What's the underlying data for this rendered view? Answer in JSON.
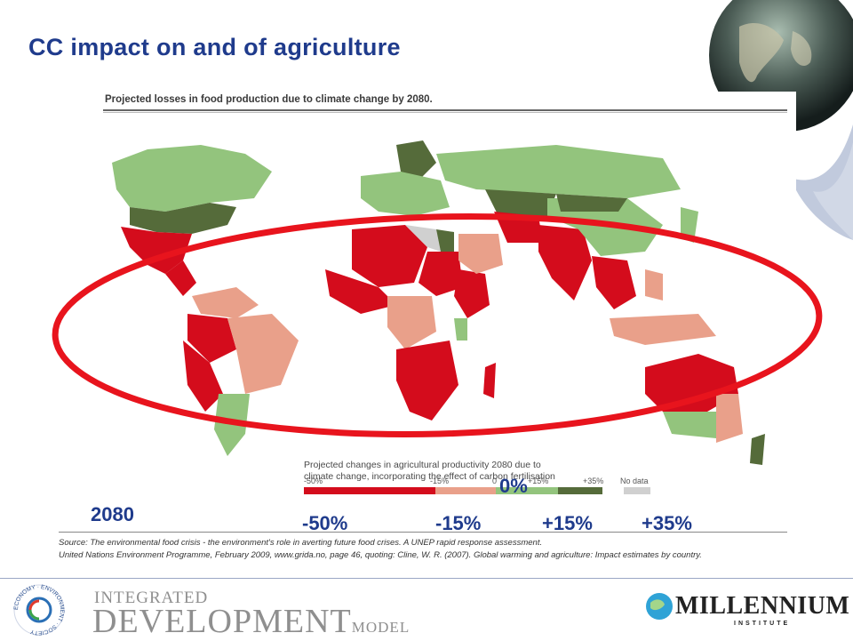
{
  "slide": {
    "title": "CC impact on and of agriculture",
    "year_label": "2080"
  },
  "figure": {
    "title": "Projected losses in food production due to climate change by 2080.",
    "legend_caption_line1": "Projected changes in agricultural productivity 2080 due to",
    "legend_caption_line2": "climate change, incorporating the effect of carbon fertilisation",
    "legend_ticks": [
      "-50%",
      "-15%",
      "0",
      "+15%",
      "+35%",
      "No data"
    ],
    "legend_colors": [
      "#d40c1c",
      "#e9a08a",
      "#93c47d",
      "#556b3a",
      "#d0d0d0"
    ],
    "overlay_labels": {
      "zero": "0%",
      "minus50": "-50%",
      "minus15": "-15%",
      "plus15": "+15%",
      "plus35": "+35%"
    },
    "highlight_color": "#e8141d"
  },
  "source": {
    "line1": "Source: The environmental food crisis - the environment's role in averting future food crises. A UNEP rapid response assessment.",
    "line2": "United Nations Environment Programme, February 2009, www.grida.no, page 46, quoting: Cline, W. R. (2007). Global warming and agriculture: Impact estimates by country."
  },
  "footer": {
    "idm_line1": "INTEGRATED",
    "idm_line2": "DEVELOPMENT",
    "idm_line3": "MODEL",
    "idm_ring_text": "ECONOMY · ENVIRONMENT · SOCIETY",
    "mi_name": "MILLENNIUM",
    "mi_sub": "INSTITUTE"
  }
}
